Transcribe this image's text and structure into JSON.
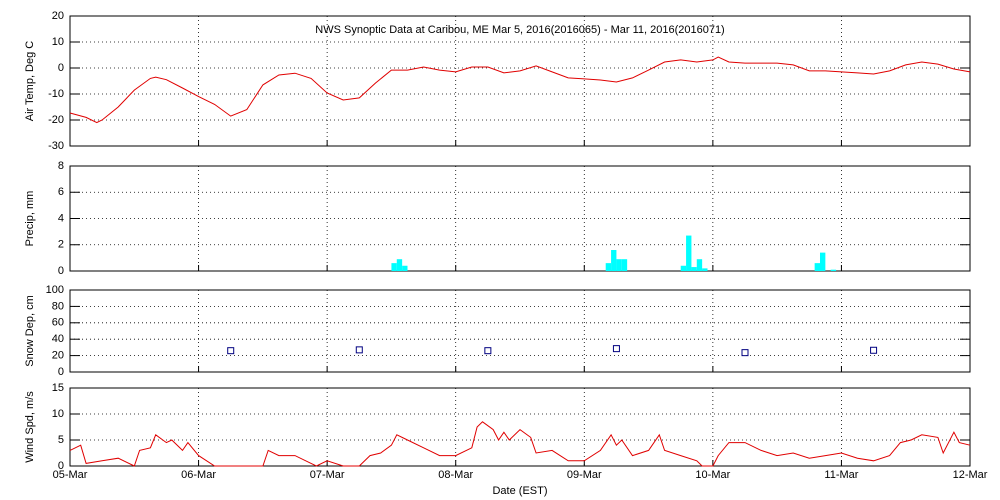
{
  "chart_data": [
    {
      "type": "line",
      "title": "NWS Synoptic Data at Caribou, ME   Mar  5, 2016(2016065) - Mar 11, 2016(2016071)",
      "ylabel": "Air Temp, Deg C",
      "color": "#e00000",
      "x": [
        0,
        3,
        5,
        6,
        9,
        12,
        15,
        16,
        18,
        21,
        24,
        27,
        30,
        33,
        36,
        39,
        42,
        45,
        48,
        51,
        54,
        57,
        60,
        63,
        66,
        69,
        72,
        75,
        78,
        81,
        84,
        87,
        90,
        93,
        96,
        99,
        102,
        105,
        108,
        111,
        114,
        117,
        120,
        121,
        123,
        126,
        129,
        132,
        135,
        138,
        141,
        144,
        147,
        150,
        153,
        156,
        159,
        162,
        165,
        168
      ],
      "values": [
        -17.3,
        -19,
        -21,
        -20,
        -15,
        -8.5,
        -4,
        -3.5,
        -4.5,
        -7.7,
        -11,
        -14,
        -18.5,
        -16,
        -6.5,
        -2.7,
        -2,
        -4,
        -9.6,
        -12.3,
        -11.5,
        -5.8,
        -0.8,
        -0.8,
        0.4,
        -0.8,
        -1.5,
        0.4,
        0.4,
        -1.9,
        -1.1,
        0.8,
        -1.5,
        -3.8,
        -4.2,
        -4.6,
        -5.4,
        -3.8,
        -0.8,
        2.3,
        3.1,
        2.3,
        3.1,
        4.2,
        2.3,
        1.9,
        1.9,
        1.9,
        1.2,
        -1.1,
        -1.1,
        -1.5,
        -1.9,
        -2.3,
        -1.1,
        1.2,
        2.3,
        1.5,
        -0.4,
        -1.5
      ],
      "xlim": [
        0,
        168
      ],
      "ylim": [
        -30,
        20
      ],
      "yticks": [
        -30,
        -20,
        -10,
        0,
        10,
        20
      ],
      "grid": true
    },
    {
      "type": "bar",
      "ylabel": "Precip, mm",
      "color": "#00ffff",
      "x": [
        60,
        61,
        62,
        100,
        101,
        102,
        103,
        114,
        115,
        116,
        117,
        118,
        139,
        140,
        142
      ],
      "values": [
        0.6,
        0.9,
        0.4,
        0.6,
        1.6,
        0.9,
        0.9,
        0.4,
        2.7,
        0.3,
        0.9,
        0.2,
        0.6,
        1.4,
        0.1
      ],
      "xlim": [
        0,
        168
      ],
      "ylim": [
        0,
        8
      ],
      "yticks": [
        0,
        2,
        4,
        6,
        8
      ],
      "grid": true
    },
    {
      "type": "scatter",
      "ylabel": "Snow Dep, cm",
      "color": "#000080",
      "x": [
        30,
        54,
        78,
        102,
        126,
        150
      ],
      "values": [
        26,
        27,
        26,
        28.5,
        23.6,
        26.5
      ],
      "xlim": [
        0,
        168
      ],
      "ylim": [
        0,
        100
      ],
      "yticks": [
        0,
        20,
        40,
        60,
        80,
        100
      ],
      "grid": true
    },
    {
      "type": "line",
      "ylabel": "Wind Spd, m/s",
      "xlabel": "Date (EST)",
      "color": "#e00000",
      "x": [
        0,
        2,
        3,
        6,
        9,
        12,
        13,
        15,
        16,
        18,
        19,
        21,
        22,
        24,
        27,
        30,
        33,
        36,
        37,
        39,
        42,
        45,
        46,
        48,
        51,
        54,
        56,
        58,
        60,
        61,
        63,
        66,
        69,
        72,
        75,
        76,
        77,
        79,
        80,
        81,
        82,
        84,
        86,
        87,
        90,
        93,
        96,
        99,
        101,
        102,
        103,
        105,
        108,
        110,
        111,
        114,
        117,
        118,
        120,
        121,
        123,
        126,
        129,
        132,
        135,
        138,
        141,
        144,
        147,
        150,
        153,
        155,
        157,
        159,
        162,
        163,
        165,
        166,
        168
      ],
      "values": [
        3,
        4,
        0.5,
        1,
        1.5,
        0,
        3,
        3.5,
        6,
        4.5,
        5,
        3,
        4.5,
        2,
        0,
        0,
        0,
        0,
        3,
        2,
        2,
        0.5,
        0,
        1,
        0,
        0,
        2,
        2.5,
        4,
        6,
        5,
        3.5,
        2,
        2,
        3.5,
        7.5,
        8.5,
        7,
        5,
        6.5,
        5,
        7,
        5.5,
        2.5,
        3,
        1,
        1,
        3,
        6,
        4,
        5,
        2,
        3,
        6,
        3,
        2,
        1,
        0,
        0,
        2,
        4.5,
        4.5,
        3,
        2,
        2.5,
        1.5,
        2,
        2.5,
        1.5,
        1,
        2,
        4.5,
        5,
        6,
        5.5,
        2.5,
        6.5,
        4.5,
        4
      ],
      "xlim": [
        0,
        168
      ],
      "ylim": [
        0,
        15
      ],
      "yticks": [
        0,
        5,
        10,
        15
      ],
      "grid": true,
      "xticks": [
        {
          "value": 0,
          "label": "05-Mar"
        },
        {
          "value": 24,
          "label": "06-Mar"
        },
        {
          "value": 48,
          "label": "07-Mar"
        },
        {
          "value": 72,
          "label": "08-Mar"
        },
        {
          "value": 96,
          "label": "09-Mar"
        },
        {
          "value": 120,
          "label": "10-Mar"
        },
        {
          "value": 144,
          "label": "11-Mar"
        },
        {
          "value": 168,
          "label": "12-Mar"
        }
      ]
    }
  ]
}
